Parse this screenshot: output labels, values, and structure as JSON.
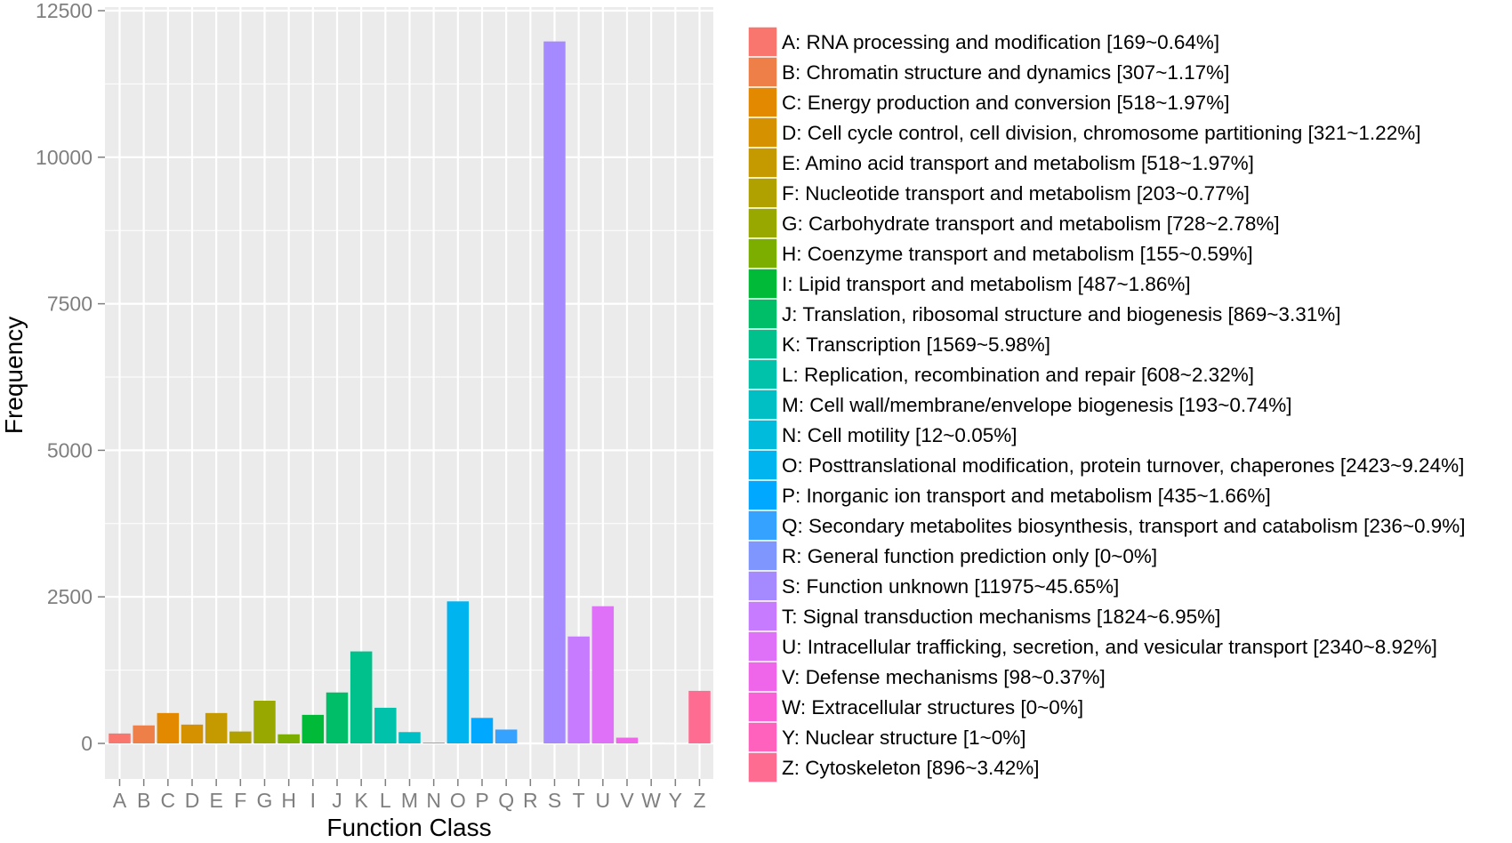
{
  "chart_data": {
    "type": "bar",
    "title": "",
    "xlabel": "Function Class",
    "ylabel": "Frequency",
    "ylim": [
      0,
      12500
    ],
    "yticks": [
      0,
      2500,
      5000,
      7500,
      10000,
      12500
    ],
    "grid": true,
    "legend_position": "right",
    "categories": [
      "A",
      "B",
      "C",
      "D",
      "E",
      "F",
      "G",
      "H",
      "I",
      "J",
      "K",
      "L",
      "M",
      "N",
      "O",
      "P",
      "Q",
      "R",
      "S",
      "T",
      "U",
      "V",
      "W",
      "Y",
      "Z"
    ],
    "values": [
      169,
      307,
      518,
      321,
      518,
      203,
      728,
      155,
      487,
      869,
      1569,
      608,
      193,
      12,
      2423,
      435,
      236,
      0,
      11975,
      1824,
      2340,
      98,
      0,
      1,
      896
    ],
    "colors": [
      "#F8766D",
      "#EF7F49",
      "#E38900",
      "#D59100",
      "#C49A00",
      "#B0A100",
      "#99A800",
      "#7CAE00",
      "#00BA38",
      "#00BE67",
      "#00C08B",
      "#00C1A9",
      "#00BFC4",
      "#00BBDC",
      "#00B4EF",
      "#00A9FF",
      "#35A2FF",
      "#7F96FF",
      "#A58AFF",
      "#C77CFF",
      "#DF70F8",
      "#F066EA",
      "#FB61D7",
      "#FF62BC",
      "#FF6C91"
    ],
    "legend": [
      "A: RNA processing and modification [169~0.64%]",
      "B: Chromatin structure and dynamics [307~1.17%]",
      "C: Energy production and conversion [518~1.97%]",
      "D: Cell cycle control, cell division, chromosome partitioning [321~1.22%]",
      "E: Amino acid transport and metabolism [518~1.97%]",
      "F: Nucleotide transport and metabolism [203~0.77%]",
      "G: Carbohydrate transport and metabolism [728~2.78%]",
      "H: Coenzyme transport and metabolism [155~0.59%]",
      "I: Lipid transport and metabolism [487~1.86%]",
      "J: Translation, ribosomal structure and biogenesis [869~3.31%]",
      "K: Transcription [1569~5.98%]",
      "L: Replication, recombination and repair [608~2.32%]",
      "M: Cell wall/membrane/envelope biogenesis [193~0.74%]",
      "N: Cell motility [12~0.05%]",
      "O: Posttranslational modification, protein turnover, chaperones [2423~9.24%]",
      "P: Inorganic ion transport and metabolism [435~1.66%]",
      "Q: Secondary metabolites biosynthesis, transport and catabolism [236~0.9%]",
      "R: General function prediction only [0~0%]",
      "S: Function unknown [11975~45.65%]",
      "T: Signal transduction mechanisms [1824~6.95%]",
      "U: Intracellular trafficking, secretion, and vesicular transport [2340~8.92%]",
      "V: Defense mechanisms [98~0.37%]",
      "W: Extracellular structures [0~0%]",
      "Y: Nuclear structure [1~0%]",
      "Z: Cytoskeleton [896~3.42%]"
    ],
    "panel_color": "#EBEBEB",
    "grid_color": "#FFFFFF",
    "axis_text_color": "#7F7F7F"
  }
}
